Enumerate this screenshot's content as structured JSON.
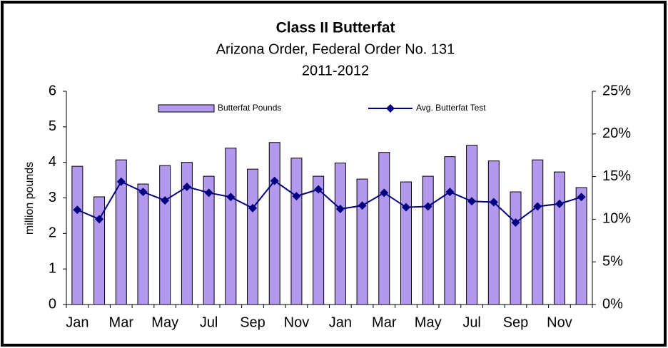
{
  "chart_data": {
    "type": "bar_line",
    "title": "Class II Butterfat",
    "subtitle": [
      "Arizona Order, Federal Order No. 131",
      "2011-2012"
    ],
    "ylabel": "million pounds",
    "categories": [
      "Jan",
      null,
      "Mar",
      null,
      "May",
      null,
      "Jul",
      null,
      "Sep",
      null,
      "Nov",
      null,
      "Jan",
      null,
      "Mar",
      null,
      "May",
      null,
      "Jul",
      null,
      "Sep",
      null,
      "Nov",
      null
    ],
    "series": [
      {
        "name": "Butterfat Pounds",
        "type": "bar",
        "color": "#b399ee",
        "values": [
          3.89,
          3.03,
          4.07,
          3.39,
          3.91,
          4.0,
          3.61,
          4.4,
          3.81,
          4.56,
          4.12,
          3.61,
          3.98,
          3.53,
          4.28,
          3.45,
          3.61,
          4.16,
          4.48,
          4.04,
          3.17,
          4.07,
          3.73,
          3.29
        ]
      },
      {
        "name": "Avg. Butterfat Test",
        "type": "line",
        "axis": "y2",
        "color": "#000080",
        "values": [
          11.1,
          10.0,
          14.4,
          13.2,
          12.2,
          13.8,
          13.1,
          12.6,
          11.3,
          14.5,
          12.7,
          13.5,
          11.2,
          11.6,
          13.1,
          11.4,
          11.5,
          13.2,
          12.1,
          12.0,
          9.6,
          11.5,
          11.8,
          12.6
        ]
      }
    ],
    "ylim": [
      0,
      6
    ],
    "yticks": [
      0,
      1,
      2,
      3,
      4,
      5,
      6
    ],
    "y2lim": [
      0,
      25
    ],
    "y2ticks": [
      {
        "value": 0,
        "label": "0%"
      },
      {
        "value": 5,
        "label": "5%"
      },
      {
        "value": 10,
        "label": "10%"
      },
      {
        "value": 15,
        "label": "15%"
      },
      {
        "value": 20,
        "label": "20%"
      },
      {
        "value": 25,
        "label": "25%"
      }
    ],
    "grid": false,
    "legend": "top"
  }
}
